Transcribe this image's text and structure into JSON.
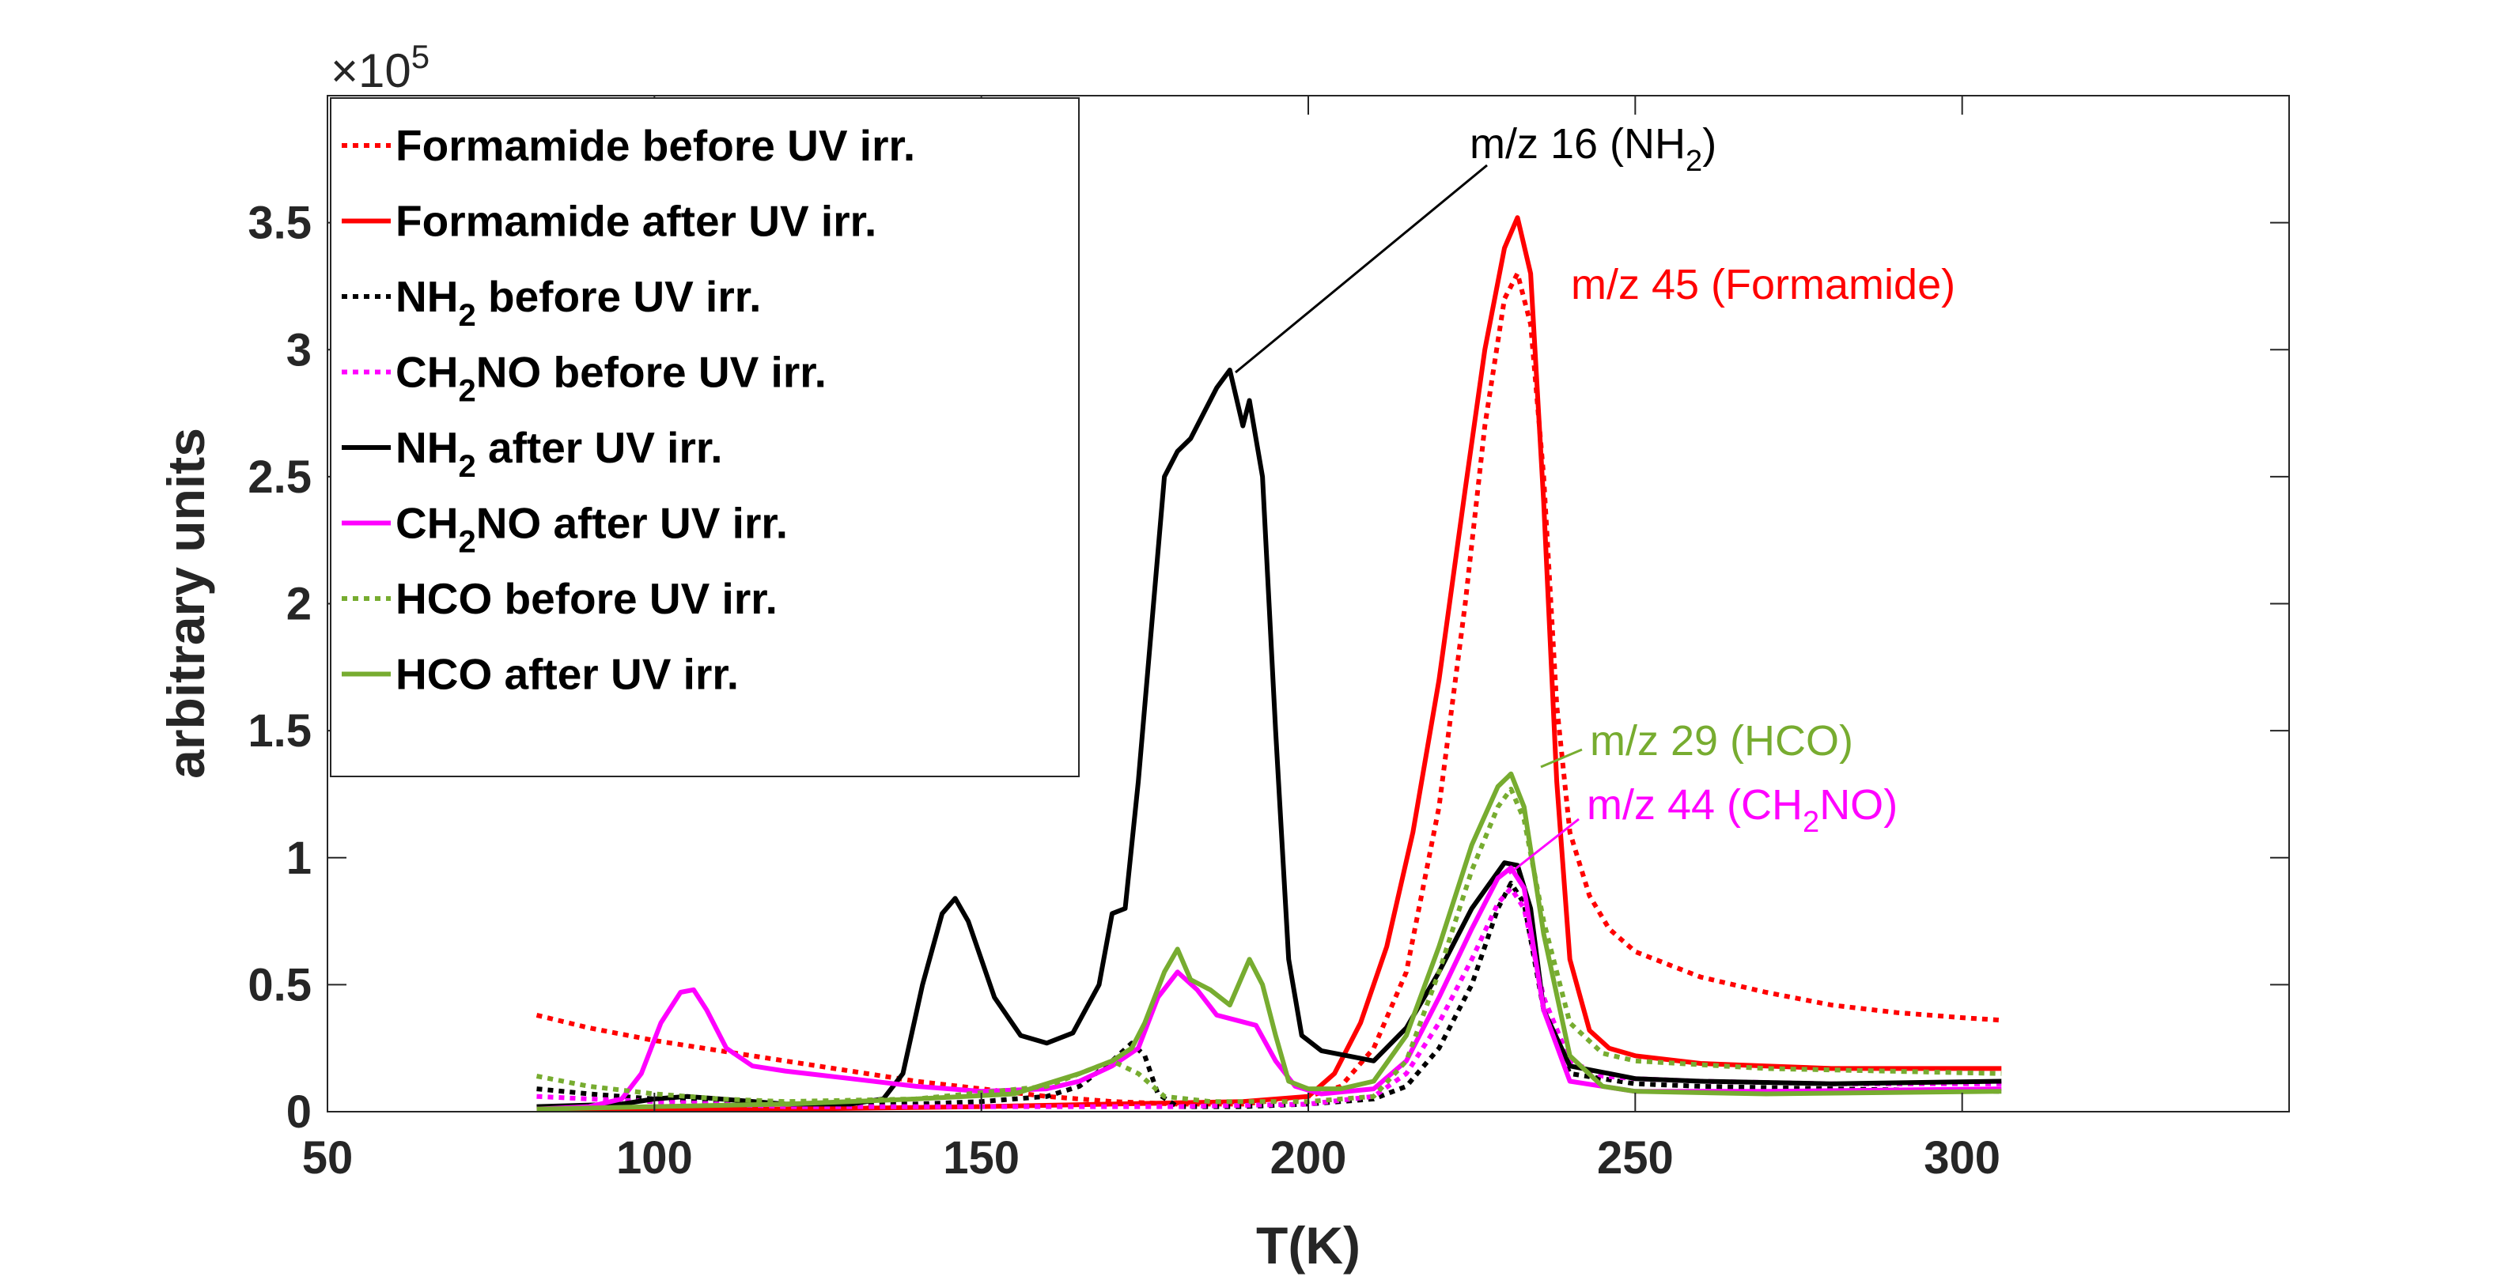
{
  "chart_data": {
    "type": "line",
    "title": "",
    "xlabel": "T(K)",
    "ylabel": "arbitrary units",
    "exponent_label": "×10",
    "exponent_power": "5",
    "xlim": [
      50,
      350
    ],
    "ylim": [
      0,
      4
    ],
    "x_ticks": [
      50,
      100,
      150,
      200,
      250,
      300
    ],
    "x_tick_labels": [
      "50",
      "100",
      "150",
      "200",
      "250",
      "300"
    ],
    "y_ticks": [
      0,
      0.5,
      1,
      1.5,
      2,
      2.5,
      3,
      3.5
    ],
    "y_tick_labels": [
      "0",
      "0.5",
      "1",
      "1.5",
      "2",
      "2.5",
      "3",
      "3.5"
    ],
    "legend_position": "top-left",
    "series": [
      {
        "name": "Formamide before UV irr.",
        "legend_main": "Formamide before UV irr.",
        "legend_sub": "",
        "legend_rest": "",
        "color": "#ff0000",
        "style": "dotted",
        "points": [
          [
            82,
            0.38
          ],
          [
            90,
            0.33
          ],
          [
            100,
            0.28
          ],
          [
            110,
            0.24
          ],
          [
            120,
            0.2
          ],
          [
            130,
            0.16
          ],
          [
            140,
            0.12
          ],
          [
            150,
            0.09
          ],
          [
            160,
            0.06
          ],
          [
            170,
            0.04
          ],
          [
            180,
            0.03
          ],
          [
            190,
            0.03
          ],
          [
            200,
            0.06
          ],
          [
            205,
            0.1
          ],
          [
            210,
            0.25
          ],
          [
            215,
            0.55
          ],
          [
            220,
            1.2
          ],
          [
            224,
            2.0
          ],
          [
            227,
            2.7
          ],
          [
            230,
            3.2
          ],
          [
            232,
            3.3
          ],
          [
            234,
            3.1
          ],
          [
            236,
            2.5
          ],
          [
            238,
            1.6
          ],
          [
            240,
            1.1
          ],
          [
            243,
            0.85
          ],
          [
            246,
            0.72
          ],
          [
            250,
            0.63
          ],
          [
            255,
            0.58
          ],
          [
            260,
            0.53
          ],
          [
            270,
            0.47
          ],
          [
            280,
            0.42
          ],
          [
            290,
            0.39
          ],
          [
            300,
            0.37
          ],
          [
            306,
            0.36
          ]
        ]
      },
      {
        "name": "Formamide after UV irr.",
        "legend_main": "Formamide after UV irr.",
        "legend_sub": "",
        "legend_rest": "",
        "color": "#ff0000",
        "style": "solid",
        "points": [
          [
            82,
            0.01
          ],
          [
            100,
            0.01
          ],
          [
            120,
            0.01
          ],
          [
            150,
            0.02
          ],
          [
            170,
            0.03
          ],
          [
            190,
            0.04
          ],
          [
            200,
            0.06
          ],
          [
            204,
            0.15
          ],
          [
            208,
            0.35
          ],
          [
            212,
            0.65
          ],
          [
            216,
            1.1
          ],
          [
            220,
            1.7
          ],
          [
            224,
            2.45
          ],
          [
            227,
            3.0
          ],
          [
            230,
            3.4
          ],
          [
            232,
            3.52
          ],
          [
            234,
            3.3
          ],
          [
            236,
            2.4
          ],
          [
            238,
            1.3
          ],
          [
            240,
            0.6
          ],
          [
            243,
            0.32
          ],
          [
            246,
            0.25
          ],
          [
            250,
            0.22
          ],
          [
            260,
            0.19
          ],
          [
            270,
            0.18
          ],
          [
            280,
            0.17
          ],
          [
            290,
            0.17
          ],
          [
            306,
            0.17
          ]
        ]
      },
      {
        "name": "NH2 before UV irr.",
        "legend_main": "NH",
        "legend_sub": "2",
        "legend_rest": " before UV irr.",
        "color": "#000000",
        "style": "dotted",
        "points": [
          [
            82,
            0.09
          ],
          [
            90,
            0.07
          ],
          [
            100,
            0.05
          ],
          [
            110,
            0.04
          ],
          [
            120,
            0.03
          ],
          [
            130,
            0.03
          ],
          [
            140,
            0.03
          ],
          [
            150,
            0.04
          ],
          [
            160,
            0.06
          ],
          [
            165,
            0.1
          ],
          [
            170,
            0.2
          ],
          [
            173,
            0.27
          ],
          [
            175,
            0.22
          ],
          [
            177,
            0.07
          ],
          [
            180,
            0.02
          ],
          [
            190,
            0.02
          ],
          [
            200,
            0.03
          ],
          [
            210,
            0.05
          ],
          [
            215,
            0.1
          ],
          [
            220,
            0.25
          ],
          [
            225,
            0.5
          ],
          [
            229,
            0.8
          ],
          [
            231,
            0.9
          ],
          [
            233,
            0.82
          ],
          [
            236,
            0.4
          ],
          [
            240,
            0.15
          ],
          [
            250,
            0.11
          ],
          [
            260,
            0.1
          ],
          [
            280,
            0.09
          ],
          [
            306,
            0.08
          ]
        ]
      },
      {
        "name": "CH2NO before UV irr.",
        "legend_main": "CH",
        "legend_sub": "2",
        "legend_rest": "NO before UV irr.",
        "color": "#ff00ff",
        "style": "dotted",
        "points": [
          [
            82,
            0.06
          ],
          [
            90,
            0.05
          ],
          [
            100,
            0.04
          ],
          [
            110,
            0.03
          ],
          [
            120,
            0.02
          ],
          [
            140,
            0.02
          ],
          [
            160,
            0.02
          ],
          [
            180,
            0.02
          ],
          [
            200,
            0.03
          ],
          [
            210,
            0.06
          ],
          [
            215,
            0.15
          ],
          [
            220,
            0.35
          ],
          [
            225,
            0.6
          ],
          [
            229,
            0.82
          ],
          [
            231,
            0.88
          ],
          [
            233,
            0.8
          ],
          [
            236,
            0.45
          ],
          [
            240,
            0.2
          ],
          [
            245,
            0.14
          ],
          [
            250,
            0.13
          ],
          [
            260,
            0.12
          ],
          [
            280,
            0.11
          ],
          [
            306,
            0.11
          ]
        ]
      },
      {
        "name": "NH2 after UV irr.",
        "legend_main": "NH",
        "legend_sub": "2",
        "legend_rest": " after UV irr.",
        "color": "#000000",
        "style": "solid",
        "points": [
          [
            82,
            0.02
          ],
          [
            95,
            0.03
          ],
          [
            100,
            0.05
          ],
          [
            105,
            0.06
          ],
          [
            110,
            0.05
          ],
          [
            120,
            0.03
          ],
          [
            130,
            0.03
          ],
          [
            135,
            0.05
          ],
          [
            138,
            0.15
          ],
          [
            141,
            0.5
          ],
          [
            144,
            0.78
          ],
          [
            146,
            0.84
          ],
          [
            148,
            0.75
          ],
          [
            152,
            0.45
          ],
          [
            156,
            0.3
          ],
          [
            160,
            0.27
          ],
          [
            164,
            0.31
          ],
          [
            168,
            0.5
          ],
          [
            170,
            0.78
          ],
          [
            172,
            0.8
          ],
          [
            174,
            1.3
          ],
          [
            176,
            1.9
          ],
          [
            178,
            2.5
          ],
          [
            180,
            2.6
          ],
          [
            182,
            2.65
          ],
          [
            184,
            2.75
          ],
          [
            186,
            2.85
          ],
          [
            188,
            2.92
          ],
          [
            190,
            2.7
          ],
          [
            191,
            2.8
          ],
          [
            193,
            2.5
          ],
          [
            195,
            1.5
          ],
          [
            197,
            0.6
          ],
          [
            199,
            0.3
          ],
          [
            202,
            0.24
          ],
          [
            206,
            0.22
          ],
          [
            210,
            0.2
          ],
          [
            215,
            0.33
          ],
          [
            220,
            0.55
          ],
          [
            225,
            0.8
          ],
          [
            230,
            0.98
          ],
          [
            232,
            0.97
          ],
          [
            234,
            0.8
          ],
          [
            236,
            0.4
          ],
          [
            240,
            0.18
          ],
          [
            250,
            0.13
          ],
          [
            260,
            0.12
          ],
          [
            280,
            0.11
          ],
          [
            306,
            0.12
          ]
        ]
      },
      {
        "name": "CH2NO after UV irr.",
        "legend_main": "CH",
        "legend_sub": "2",
        "legend_rest": "NO after UV irr.",
        "color": "#ff00ff",
        "style": "solid",
        "points": [
          [
            82,
            0.01
          ],
          [
            90,
            0.02
          ],
          [
            95,
            0.05
          ],
          [
            98,
            0.15
          ],
          [
            101,
            0.35
          ],
          [
            104,
            0.47
          ],
          [
            106,
            0.48
          ],
          [
            108,
            0.4
          ],
          [
            111,
            0.25
          ],
          [
            115,
            0.18
          ],
          [
            120,
            0.16
          ],
          [
            130,
            0.13
          ],
          [
            140,
            0.1
          ],
          [
            150,
            0.08
          ],
          [
            160,
            0.09
          ],
          [
            165,
            0.12
          ],
          [
            170,
            0.18
          ],
          [
            174,
            0.25
          ],
          [
            177,
            0.45
          ],
          [
            180,
            0.55
          ],
          [
            183,
            0.48
          ],
          [
            186,
            0.38
          ],
          [
            189,
            0.36
          ],
          [
            192,
            0.34
          ],
          [
            195,
            0.2
          ],
          [
            198,
            0.1
          ],
          [
            202,
            0.07
          ],
          [
            210,
            0.09
          ],
          [
            215,
            0.2
          ],
          [
            220,
            0.45
          ],
          [
            225,
            0.72
          ],
          [
            229,
            0.92
          ],
          [
            231,
            0.96
          ],
          [
            233,
            0.88
          ],
          [
            236,
            0.4
          ],
          [
            240,
            0.12
          ],
          [
            250,
            0.08
          ],
          [
            270,
            0.08
          ],
          [
            306,
            0.09
          ]
        ]
      },
      {
        "name": "HCO before UV irr.",
        "legend_main": "HCO before UV irr.",
        "legend_sub": "",
        "legend_rest": "",
        "color": "#77ac30",
        "style": "dotted",
        "points": [
          [
            82,
            0.14
          ],
          [
            90,
            0.1
          ],
          [
            100,
            0.07
          ],
          [
            110,
            0.05
          ],
          [
            120,
            0.04
          ],
          [
            140,
            0.05
          ],
          [
            160,
            0.1
          ],
          [
            170,
            0.2
          ],
          [
            174,
            0.15
          ],
          [
            178,
            0.06
          ],
          [
            185,
            0.04
          ],
          [
            200,
            0.04
          ],
          [
            210,
            0.06
          ],
          [
            215,
            0.2
          ],
          [
            220,
            0.55
          ],
          [
            225,
            0.95
          ],
          [
            229,
            1.2
          ],
          [
            231,
            1.27
          ],
          [
            233,
            1.15
          ],
          [
            236,
            0.75
          ],
          [
            240,
            0.35
          ],
          [
            245,
            0.23
          ],
          [
            250,
            0.2
          ],
          [
            270,
            0.17
          ],
          [
            306,
            0.15
          ]
        ]
      },
      {
        "name": "HCO after UV irr.",
        "legend_main": "HCO after UV irr.",
        "legend_sub": "",
        "legend_rest": "",
        "color": "#77ac30",
        "style": "solid",
        "points": [
          [
            82,
            0.01
          ],
          [
            100,
            0.02
          ],
          [
            120,
            0.03
          ],
          [
            140,
            0.05
          ],
          [
            155,
            0.07
          ],
          [
            165,
            0.15
          ],
          [
            170,
            0.2
          ],
          [
            173,
            0.25
          ],
          [
            175,
            0.35
          ],
          [
            178,
            0.55
          ],
          [
            180,
            0.64
          ],
          [
            182,
            0.52
          ],
          [
            185,
            0.48
          ],
          [
            188,
            0.42
          ],
          [
            191,
            0.6
          ],
          [
            193,
            0.5
          ],
          [
            195,
            0.3
          ],
          [
            197,
            0.12
          ],
          [
            200,
            0.09
          ],
          [
            205,
            0.09
          ],
          [
            210,
            0.12
          ],
          [
            215,
            0.3
          ],
          [
            220,
            0.65
          ],
          [
            225,
            1.05
          ],
          [
            229,
            1.28
          ],
          [
            231,
            1.33
          ],
          [
            233,
            1.2
          ],
          [
            236,
            0.7
          ],
          [
            240,
            0.22
          ],
          [
            245,
            0.1
          ],
          [
            250,
            0.08
          ],
          [
            270,
            0.07
          ],
          [
            306,
            0.08
          ]
        ]
      }
    ],
    "annotations": [
      {
        "text": "m/z 16 (NH",
        "sub": "2",
        "tail": ")",
        "color": "#000000"
      },
      {
        "text": "m/z 45 (Formamide)",
        "sub": "",
        "tail": "",
        "color": "#ff0000"
      },
      {
        "text": "m/z 29 (HCO)",
        "sub": "",
        "tail": "",
        "color": "#77ac30"
      },
      {
        "text": "m/z 44 (CH",
        "sub": "2",
        "tail": "NO)",
        "color": "#ff00ff"
      }
    ]
  }
}
